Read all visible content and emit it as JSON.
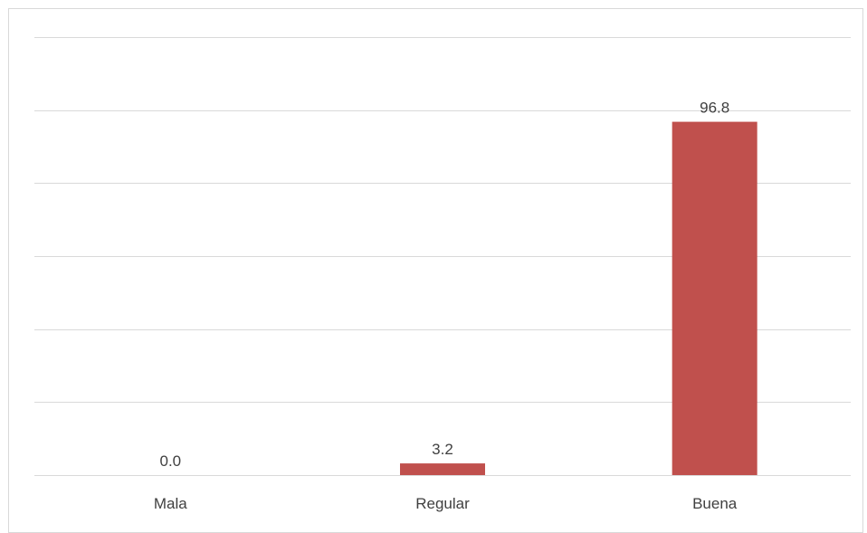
{
  "chart_data": {
    "type": "bar",
    "categories": [
      "Mala",
      "Regular",
      "Buena"
    ],
    "values": [
      0.0,
      3.2,
      96.8
    ],
    "data_labels": [
      "0.0",
      "3.2",
      "96.8"
    ],
    "title": "",
    "xlabel": "",
    "ylabel": "",
    "ylim": [
      0,
      120
    ],
    "grid": true,
    "y_tick_labels_visible": false,
    "legend": "none",
    "bar_color": "#c0504d"
  }
}
